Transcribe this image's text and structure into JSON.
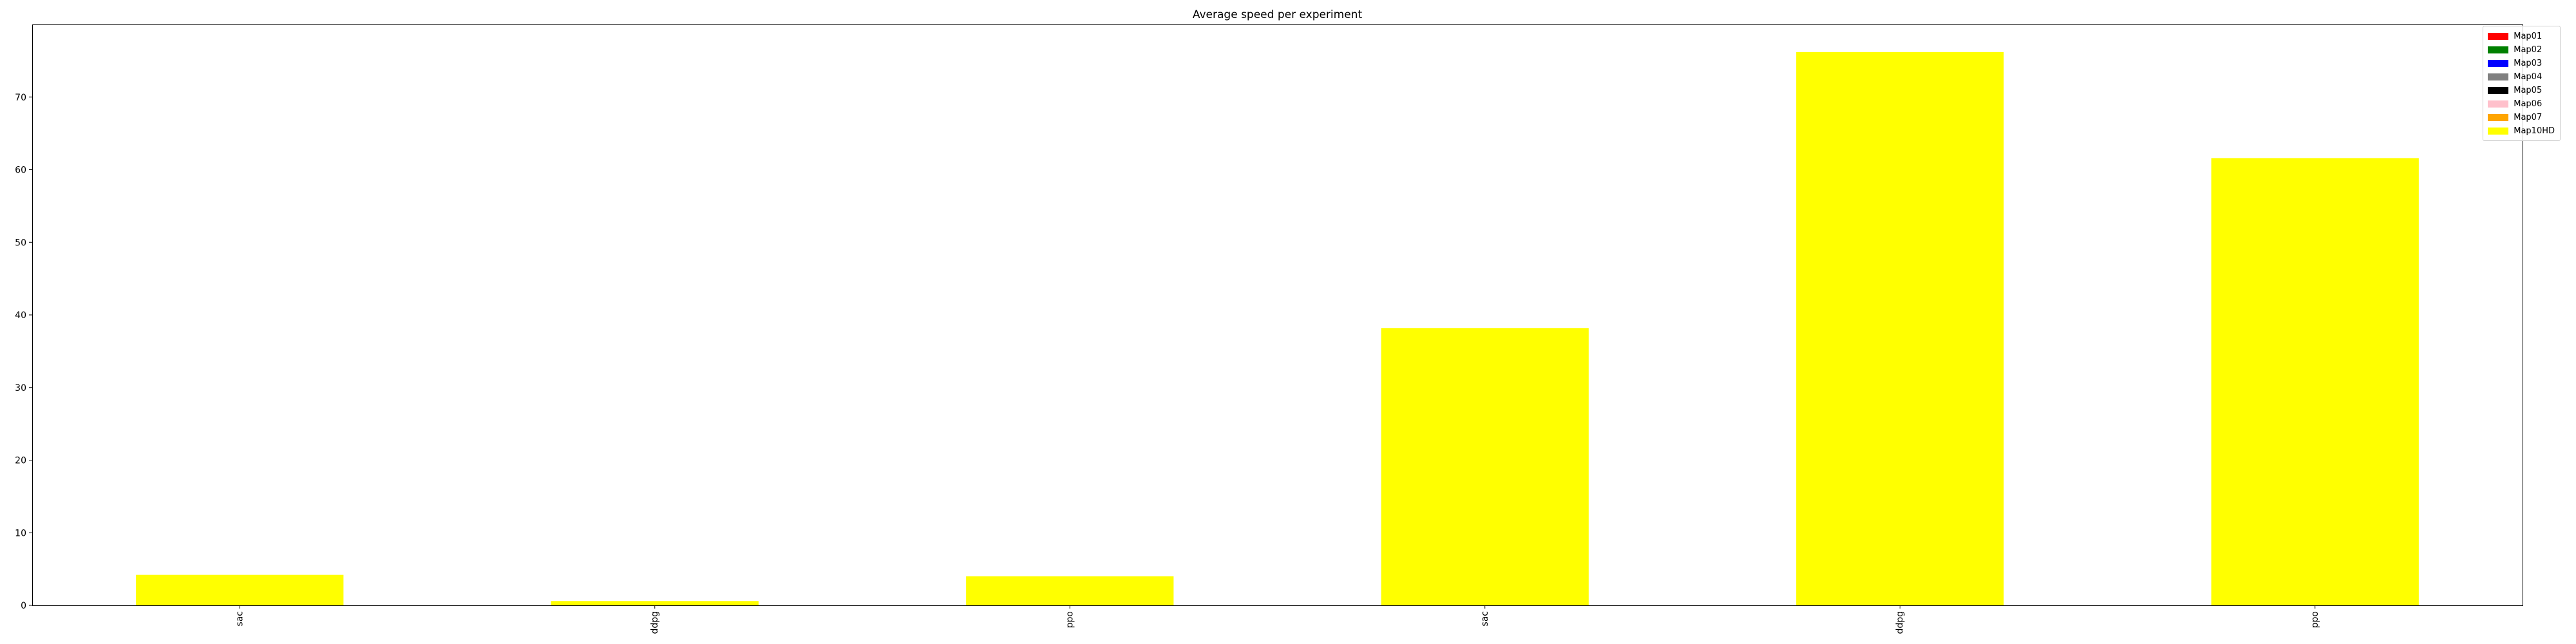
{
  "chart_data": {
    "type": "bar",
    "title": "Average speed per experiment",
    "xlabel": "",
    "ylabel": "",
    "categories": [
      "sac",
      "ddpg",
      "ppo",
      "sac",
      "ddpg",
      "ppo"
    ],
    "series": [
      {
        "name": "Map10HD",
        "color": "#ffff00",
        "values": [
          4.2,
          0.6,
          4.0,
          38.2,
          76.2,
          61.6
        ]
      }
    ],
    "ylim": [
      0,
      80
    ],
    "yticks": [
      0,
      10,
      20,
      30,
      40,
      50,
      60,
      70
    ],
    "xtick_rotation": 90,
    "grid": false,
    "legend_position": "top-right",
    "legend": [
      {
        "label": "Map01",
        "color": "#ff0000"
      },
      {
        "label": "Map02",
        "color": "#008000"
      },
      {
        "label": "Map03",
        "color": "#0000ff"
      },
      {
        "label": "Map04",
        "color": "#808080"
      },
      {
        "label": "Map05",
        "color": "#000000"
      },
      {
        "label": "Map06",
        "color": "#ffc0cb"
      },
      {
        "label": "Map07",
        "color": "#ffa500"
      },
      {
        "label": "Map10HD",
        "color": "#ffff00"
      }
    ]
  }
}
